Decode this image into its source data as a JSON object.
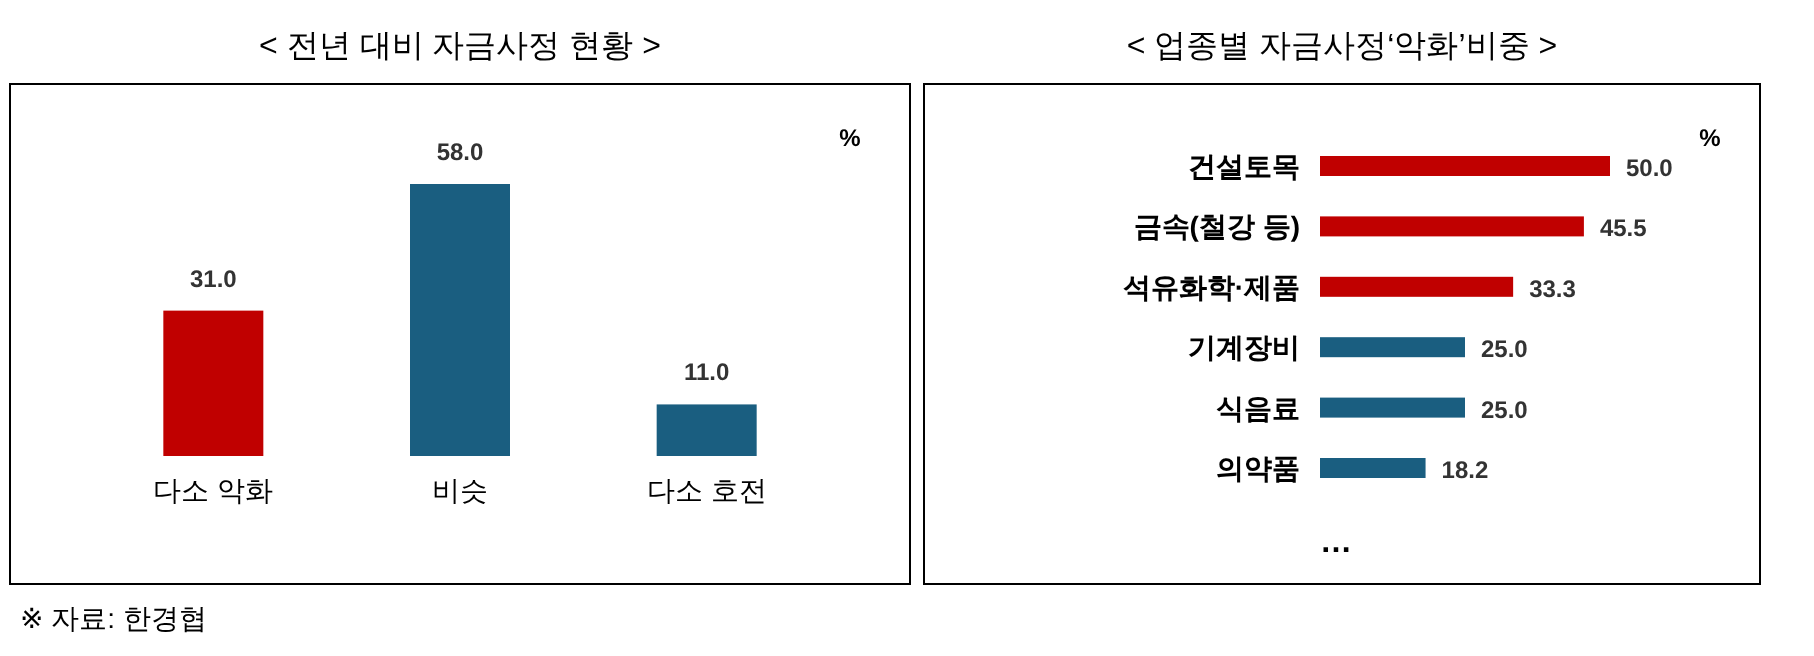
{
  "chart_data": [
    {
      "type": "bar",
      "title": "< 전년 대비 자금사정 현황 >",
      "categories": [
        "다소 악화",
        "비슷",
        "다소 호전"
      ],
      "values": [
        31.0,
        58.0,
        11.0
      ],
      "value_labels": [
        "31.0",
        "58.0",
        "11.0"
      ],
      "colors": [
        "#c00000",
        "#1a5e80",
        "#1a5e80"
      ],
      "annotations": [
        "%",
        "※ 자료: 한경협"
      ]
    },
    {
      "type": "bar",
      "orientation": "horizontal",
      "title": "< 업종별 자금사정‘악화’비중 >",
      "categories": [
        "건설토목",
        "금속(철강 등)",
        "석유화학·제품",
        "기계장비",
        "식음료",
        "의약품"
      ],
      "values": [
        50.0,
        45.5,
        33.3,
        25.0,
        25.0,
        18.2
      ],
      "value_labels": [
        "50.0",
        "45.5",
        "33.3",
        "25.0",
        "25.0",
        "18.2"
      ],
      "colors": [
        "#c00000",
        "#c00000",
        "#c00000",
        "#1a5e80",
        "#1a5e80",
        "#1a5e80"
      ],
      "annotations": [
        "%",
        "…"
      ]
    }
  ]
}
